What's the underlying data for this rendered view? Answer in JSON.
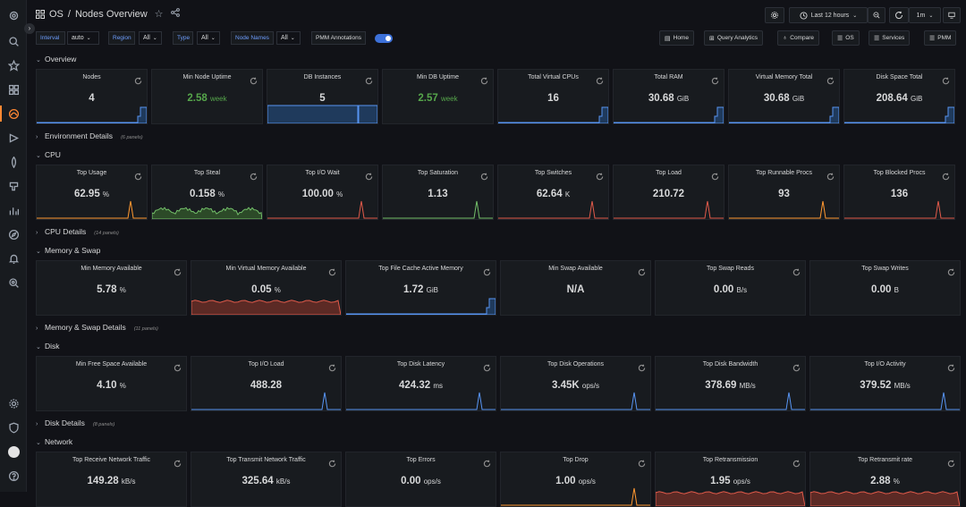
{
  "breadcrumb": {
    "folder": "OS",
    "separator": "/",
    "dashboard": "Nodes Overview"
  },
  "toolbar": {
    "time_range": "Last 12 hours",
    "refresh": "1m"
  },
  "variables": [
    {
      "label": "Interval",
      "value": "auto"
    },
    {
      "label": "Region",
      "value": "All"
    },
    {
      "label": "Type",
      "value": "All"
    },
    {
      "label": "Node Names",
      "value": "All"
    }
  ],
  "annotations_label": "PMM Annotations",
  "links": [
    "Home",
    "Query Analytics",
    "Compare",
    "OS",
    "Services",
    "PMM"
  ],
  "rows": {
    "overview": "Overview",
    "env": {
      "title": "Environment Details",
      "sub": "(6 panels)"
    },
    "cpu": "CPU",
    "cpu_details": {
      "title": "CPU Details",
      "sub": "(14 panels)"
    },
    "memory": "Memory & Swap",
    "memory_details": {
      "title": "Memory & Swap Details",
      "sub": "(11 panels)"
    },
    "disk": "Disk",
    "disk_details": {
      "title": "Disk Details",
      "sub": "(8 panels)"
    },
    "network": "Network"
  },
  "panels": {
    "overview": [
      {
        "title": "Nodes",
        "value": "4",
        "unit": "",
        "color": "#d8d9da",
        "spark": "step"
      },
      {
        "title": "Min Node Uptime",
        "value": "2.58",
        "unit": "week",
        "color": "#56a64b",
        "spark": "none"
      },
      {
        "title": "DB Instances",
        "value": "5",
        "unit": "",
        "color": "#d8d9da",
        "spark": "fill"
      },
      {
        "title": "Min DB Uptime",
        "value": "2.57",
        "unit": "week",
        "color": "#56a64b",
        "spark": "none"
      },
      {
        "title": "Total Virtual CPUs",
        "value": "16",
        "unit": "",
        "color": "#d8d9da",
        "spark": "step"
      },
      {
        "title": "Total RAM",
        "value": "30.68",
        "unit": "GiB",
        "color": "#d8d9da",
        "spark": "step"
      },
      {
        "title": "Virtual Memory Total",
        "value": "30.68",
        "unit": "GiB",
        "color": "#d8d9da",
        "spark": "step"
      },
      {
        "title": "Disk Space Total",
        "value": "208.64",
        "unit": "GiB",
        "color": "#d8d9da",
        "spark": "step"
      }
    ],
    "cpu": [
      {
        "title": "Top Usage",
        "value": "62.95",
        "unit": "%",
        "color": "#d8d9da",
        "spark": "spike-orange"
      },
      {
        "title": "Top Steal",
        "value": "0.158",
        "unit": "%",
        "color": "#d8d9da",
        "spark": "noise-green"
      },
      {
        "title": "Top I/O Wait",
        "value": "100.00",
        "unit": "%",
        "color": "#d8d9da",
        "spark": "spike-red"
      },
      {
        "title": "Top Saturation",
        "value": "1.13",
        "unit": "",
        "color": "#d8d9da",
        "spark": "spike-green"
      },
      {
        "title": "Top Switches",
        "value": "62.64",
        "unit": "K",
        "color": "#d8d9da",
        "spark": "spike-red"
      },
      {
        "title": "Top Load",
        "value": "210.72",
        "unit": "",
        "color": "#d8d9da",
        "spark": "spike-red"
      },
      {
        "title": "Top Runnable Procs",
        "value": "93",
        "unit": "",
        "color": "#d8d9da",
        "spark": "spike-orange"
      },
      {
        "title": "Top Blocked Procs",
        "value": "136",
        "unit": "",
        "color": "#d8d9da",
        "spark": "spike-red"
      }
    ],
    "memory": [
      {
        "title": "Min Memory Available",
        "value": "5.78",
        "unit": "%",
        "color": "#d8d9da",
        "spark": "none"
      },
      {
        "title": "Min Virtual Memory Available",
        "value": "0.05",
        "unit": "%",
        "color": "#d8d9da",
        "spark": "red-fill"
      },
      {
        "title": "Top File Cache Active Memory",
        "value": "1.72",
        "unit": "GiB",
        "color": "#d8d9da",
        "spark": "step"
      },
      {
        "title": "Min Swap Available",
        "value": "N/A",
        "unit": "",
        "color": "#d8d9da",
        "spark": "none"
      },
      {
        "title": "Top Swap Reads",
        "value": "0.00",
        "unit": "B/s",
        "color": "#d8d9da",
        "spark": "none"
      },
      {
        "title": "Top Swap Writes",
        "value": "0.00",
        "unit": "B",
        "color": "#d8d9da",
        "spark": "none"
      }
    ],
    "disk": [
      {
        "title": "Min Free Space Available",
        "value": "4.10",
        "unit": "%",
        "color": "#d8d9da",
        "spark": "none"
      },
      {
        "title": "Top I/O Load",
        "value": "488.28",
        "unit": "",
        "color": "#d8d9da",
        "spark": "spike-blue"
      },
      {
        "title": "Top Disk Latency",
        "value": "424.32",
        "unit": "ms",
        "color": "#d8d9da",
        "spark": "spike-blue"
      },
      {
        "title": "Top Disk Operations",
        "value": "3.45K",
        "unit": "ops/s",
        "color": "#d8d9da",
        "spark": "spike-blue"
      },
      {
        "title": "Top Disk Bandwidth",
        "value": "378.69",
        "unit": "MB/s",
        "color": "#d8d9da",
        "spark": "spike-blue"
      },
      {
        "title": "Top I/O Activity",
        "value": "379.52",
        "unit": "MB/s",
        "color": "#d8d9da",
        "spark": "spike-blue"
      }
    ],
    "network": [
      {
        "title": "Top Receive Network Traffic",
        "value": "149.28",
        "unit": "kB/s",
        "color": "#d8d9da",
        "spark": "none"
      },
      {
        "title": "Top Transmit Network Traffic",
        "value": "325.64",
        "unit": "kB/s",
        "color": "#d8d9da",
        "spark": "none"
      },
      {
        "title": "Top Errors",
        "value": "0.00",
        "unit": "ops/s",
        "color": "#d8d9da",
        "spark": "none"
      },
      {
        "title": "Top Drop",
        "value": "1.00",
        "unit": "ops/s",
        "color": "#d8d9da",
        "spark": "spike-orange"
      },
      {
        "title": "Top Retransmission",
        "value": "1.95",
        "unit": "ops/s",
        "color": "#d8d9da",
        "spark": "red-fill"
      },
      {
        "title": "Top Retransmit rate",
        "value": "2.88",
        "unit": "%",
        "color": "#d8d9da",
        "spark": "red-fill"
      }
    ]
  }
}
